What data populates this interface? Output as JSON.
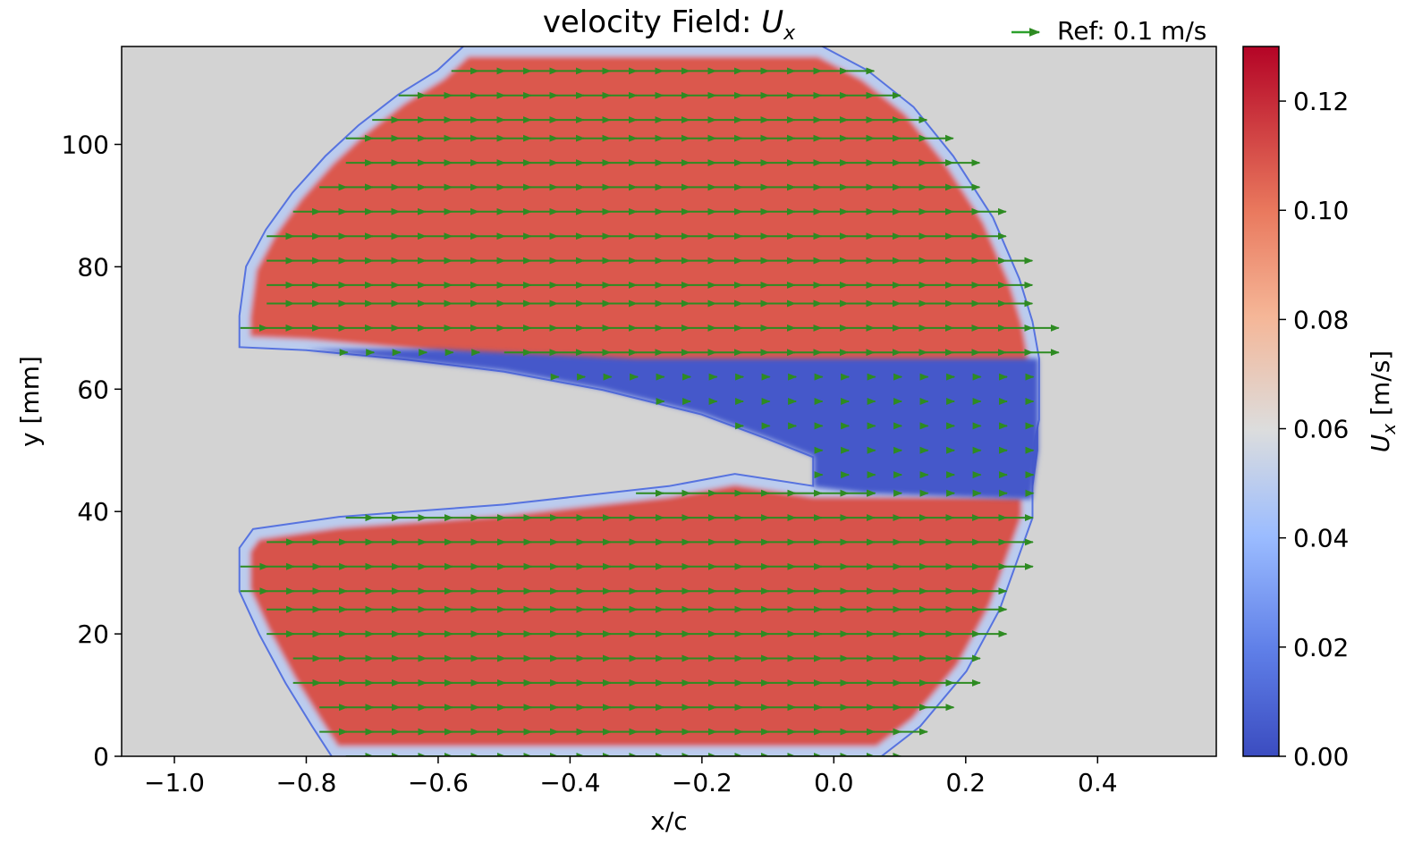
{
  "chart_data": {
    "type": "heatmap",
    "title_text": "velocity Field: ",
    "title_symbol": "U",
    "title_sub": "x",
    "xlabel": "x/c",
    "ylabel": "y [mm]",
    "xlim": [
      -1.08,
      0.58
    ],
    "ylim": [
      0,
      116
    ],
    "xticks": [
      -1.0,
      -0.8,
      -0.6,
      -0.4,
      -0.2,
      0.0,
      0.2,
      0.4
    ],
    "xtick_labels": [
      "−1.0",
      "−0.8",
      "−0.6",
      "−0.4",
      "−0.2",
      "0.0",
      "0.2",
      "0.4"
    ],
    "yticks": [
      0,
      20,
      40,
      60,
      80,
      100
    ],
    "ytick_labels": [
      "0",
      "20",
      "40",
      "60",
      "80",
      "100"
    ],
    "colorbar": {
      "label_symbol": "U",
      "label_sub": "x",
      "label_unit": " [m/s]",
      "range": [
        0.0,
        0.13
      ],
      "ticks": [
        0.0,
        0.02,
        0.04,
        0.06,
        0.08,
        0.1,
        0.12
      ],
      "tick_labels": [
        "0.00",
        "0.02",
        "0.04",
        "0.06",
        "0.08",
        "0.10",
        "0.12"
      ],
      "colormap": "coolwarm"
    },
    "legend": {
      "label": "Ref: 0.1 m/s",
      "color": "#2ca02c",
      "placement": "top-right"
    },
    "quiver_color": "#2e8b22",
    "masked_color": "#d3d3d3",
    "field": {
      "description_values": "Ux approx 0.11 m/s in upper and lower lobes, near 0 in wake region",
      "upper_lobe_value": 0.108,
      "lower_lobe_value": 0.11,
      "wake_value": 0.005,
      "upper_lobe_outline": [
        [
          -0.9,
          67
        ],
        [
          -0.9,
          72
        ],
        [
          -0.89,
          80
        ],
        [
          -0.86,
          86
        ],
        [
          -0.82,
          92
        ],
        [
          -0.77,
          98
        ],
        [
          -0.72,
          103
        ],
        [
          -0.66,
          108
        ],
        [
          -0.6,
          112
        ],
        [
          -0.56,
          116
        ],
        [
          -0.02,
          116
        ],
        [
          0.05,
          112
        ],
        [
          0.12,
          106
        ],
        [
          0.18,
          98
        ],
        [
          0.24,
          88
        ],
        [
          0.28,
          78
        ],
        [
          0.3,
          71
        ],
        [
          0.31,
          65
        ],
        [
          0.31,
          55
        ],
        [
          0.3,
          50
        ],
        [
          0.3,
          40
        ],
        [
          0.2,
          41
        ],
        [
          0.05,
          43
        ],
        [
          -0.03,
          44
        ],
        [
          -0.03,
          49
        ],
        [
          -0.1,
          52
        ],
        [
          -0.2,
          56
        ],
        [
          -0.35,
          60
        ],
        [
          -0.5,
          63
        ],
        [
          -0.65,
          65
        ],
        [
          -0.8,
          66.5
        ]
      ],
      "lower_lobe_outline": [
        [
          -0.03,
          44
        ],
        [
          -0.15,
          46
        ],
        [
          -0.25,
          44
        ],
        [
          -0.5,
          41
        ],
        [
          -0.75,
          39
        ],
        [
          -0.88,
          37
        ],
        [
          -0.9,
          34
        ],
        [
          -0.9,
          30
        ],
        [
          -0.9,
          27
        ],
        [
          -0.87,
          20
        ],
        [
          -0.83,
          12
        ],
        [
          -0.79,
          5
        ],
        [
          -0.76,
          0
        ],
        [
          0.07,
          0
        ],
        [
          0.13,
          5
        ],
        [
          0.2,
          14
        ],
        [
          0.25,
          24
        ],
        [
          0.28,
          33
        ],
        [
          0.3,
          39
        ],
        [
          0.3,
          44
        ]
      ],
      "wake_outline": [
        [
          -0.8,
          66.5
        ],
        [
          -0.5,
          63
        ],
        [
          -0.35,
          60
        ],
        [
          -0.2,
          56
        ],
        [
          -0.1,
          52
        ],
        [
          -0.03,
          49
        ],
        [
          -0.03,
          44
        ],
        [
          0.05,
          43
        ],
        [
          0.3,
          42
        ],
        [
          0.31,
          50
        ],
        [
          0.31,
          65
        ],
        [
          0.1,
          65
        ],
        [
          -0.3,
          65
        ],
        [
          -0.6,
          66.5
        ]
      ],
      "quiver_rows_y": [
        0,
        4,
        8,
        12,
        16,
        20,
        24,
        27,
        31,
        35,
        39,
        43,
        46,
        50,
        54,
        58,
        62,
        66,
        70,
        74,
        77,
        81,
        85,
        89,
        93,
        97,
        101,
        104,
        108,
        112,
        116
      ],
      "quiver_dx": 0.04
    }
  }
}
